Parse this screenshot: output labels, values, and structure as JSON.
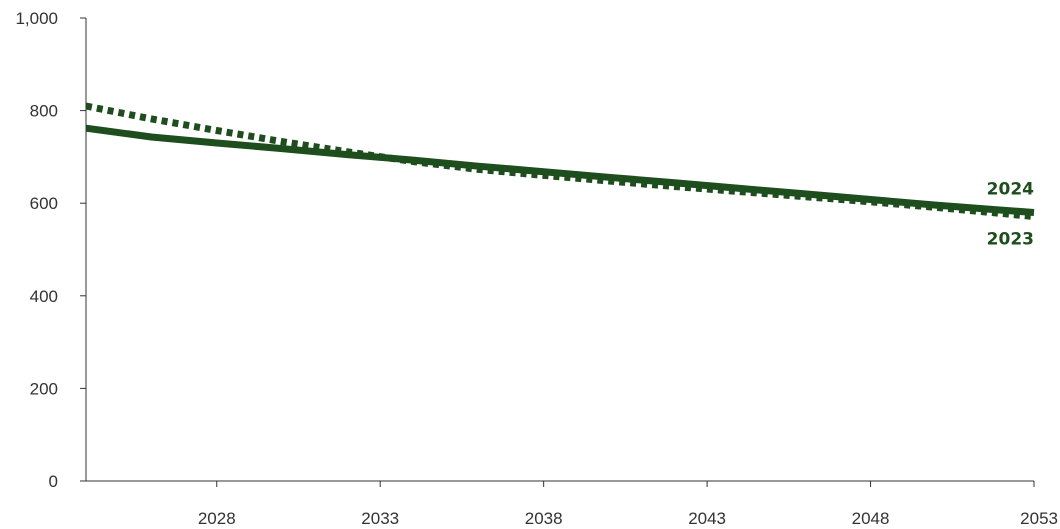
{
  "chart_data": {
    "type": "line",
    "title": "",
    "xlabel": "",
    "ylabel": "",
    "xlim": [
      2024,
      2053
    ],
    "ylim": [
      0,
      1000
    ],
    "x_ticks": [
      2028,
      2033,
      2038,
      2043,
      2048,
      2053
    ],
    "y_ticks": [
      0,
      200,
      400,
      600,
      800,
      1000
    ],
    "y_tick_labels": [
      "0",
      "200",
      "400",
      "600",
      "800",
      "1,000"
    ],
    "grid": false,
    "legend": "none",
    "colors": {
      "series": "#1e4d1e",
      "axis": "#333333"
    },
    "series": [
      {
        "name": "2024",
        "style": "solid",
        "x": [
          2024,
          2026,
          2028,
          2030,
          2032,
          2034,
          2036,
          2038,
          2040,
          2042,
          2044,
          2046,
          2048,
          2050,
          2052,
          2053
        ],
        "y": [
          762,
          743,
          730,
          718,
          705,
          693,
          680,
          668,
          656,
          644,
          632,
          620,
          608,
          596,
          585,
          580
        ]
      },
      {
        "name": "2023",
        "style": "dotted",
        "x": [
          2024,
          2026,
          2028,
          2030,
          2032,
          2034,
          2036,
          2038,
          2040,
          2042,
          2044,
          2046,
          2048,
          2050,
          2052,
          2053
        ],
        "y": [
          810,
          782,
          757,
          733,
          711,
          690,
          673,
          660,
          648,
          636,
          625,
          614,
          603,
          591,
          578,
          571
        ]
      }
    ]
  }
}
